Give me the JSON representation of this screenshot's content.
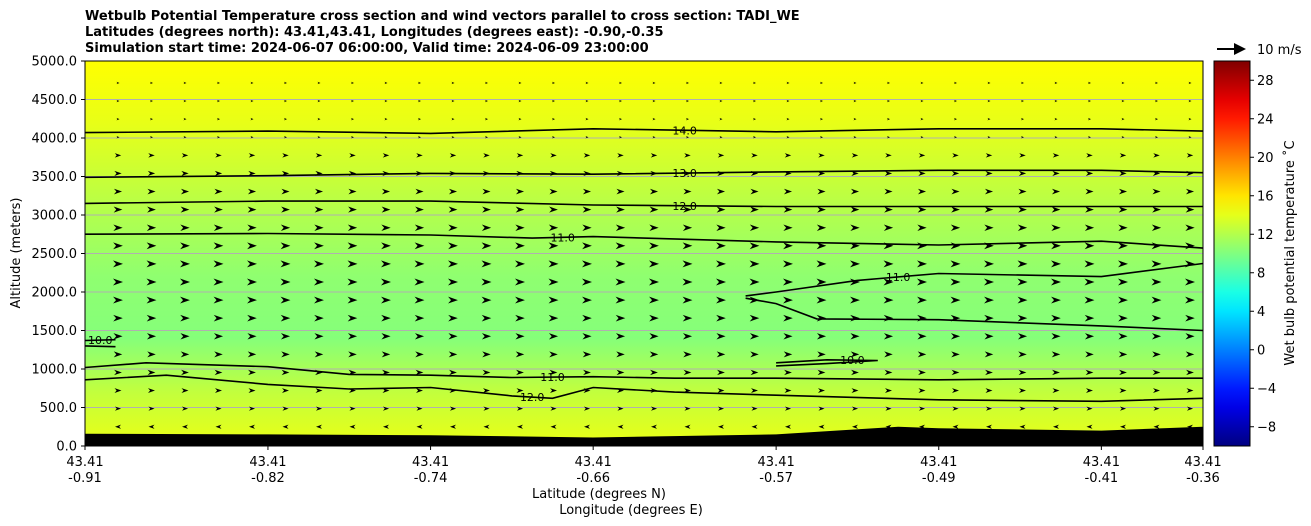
{
  "figure": {
    "title_lines": [
      "Wetbulb Potential Temperature cross section and wind vectors parallel to cross section: TADI_WE",
      "Latitudes (degrees north): 43.41,43.41, Longitudes (degrees east): -0.90,-0.35",
      "Simulation start time: 2024-06-07 06:00:00, Valid time: 2024-06-09 23:00:00"
    ]
  },
  "chart_data": {
    "type": "heatmap",
    "subtype": "cross-section with contours and wind vectors",
    "ylabel": "Altitude (meters)",
    "xlabel_lines": [
      "Latitude (degrees N)",
      "Longitude (degrees E)"
    ],
    "ylim": [
      0,
      5000
    ],
    "y_ticks": [
      "0.0",
      "500.0",
      "1000.0",
      "1500.0",
      "2000.0",
      "2500.0",
      "3000.0",
      "3500.0",
      "4000.0",
      "4500.0",
      "5000.0"
    ],
    "x_ticks": [
      {
        "lat": "43.41",
        "lon": "-0.91"
      },
      {
        "lat": "43.41",
        "lon": "-0.82"
      },
      {
        "lat": "43.41",
        "lon": "-0.74"
      },
      {
        "lat": "43.41",
        "lon": "-0.66"
      },
      {
        "lat": "43.41",
        "lon": "-0.57"
      },
      {
        "lat": "43.41",
        "lon": "-0.49"
      },
      {
        "lat": "43.41",
        "lon": "-0.41"
      },
      {
        "lat": "43.41",
        "lon": "-0.36"
      }
    ],
    "horizontal_grid": true,
    "colorbar": {
      "label": "Wet bulb potential temperature ˚C",
      "range": [
        -10,
        30
      ],
      "ticks": [
        "−8",
        "−4",
        "0",
        "4",
        "8",
        "12",
        "16",
        "20",
        "24",
        "28"
      ],
      "colormap": "jet"
    },
    "quiver_key": {
      "label": "10 m/s",
      "color": "#000000"
    },
    "background_field": [
      {
        "altitude": 0,
        "value": 14.2
      },
      {
        "altitude": 700,
        "value": 12.6
      },
      {
        "altitude": 1400,
        "value": 10.2
      },
      {
        "altitude": 2200,
        "value": 10.6
      },
      {
        "altitude": 2900,
        "value": 11.8
      },
      {
        "altitude": 3500,
        "value": 12.9
      },
      {
        "altitude": 4200,
        "value": 14.1
      },
      {
        "altitude": 5000,
        "value": 15.0
      }
    ],
    "contours": [
      {
        "label": "14.0",
        "points": [
          [
            -0.91,
            4070
          ],
          [
            -0.82,
            4090
          ],
          [
            -0.74,
            4060
          ],
          [
            -0.66,
            4120
          ],
          [
            -0.57,
            4080
          ],
          [
            -0.49,
            4120
          ],
          [
            -0.41,
            4120
          ],
          [
            -0.36,
            4090
          ]
        ]
      },
      {
        "label": "13.0",
        "points": [
          [
            -0.91,
            3490
          ],
          [
            -0.82,
            3510
          ],
          [
            -0.74,
            3540
          ],
          [
            -0.66,
            3530
          ],
          [
            -0.57,
            3560
          ],
          [
            -0.49,
            3580
          ],
          [
            -0.41,
            3580
          ],
          [
            -0.36,
            3550
          ]
        ]
      },
      {
        "label": "12.0",
        "points": [
          [
            -0.91,
            3150
          ],
          [
            -0.82,
            3180
          ],
          [
            -0.74,
            3180
          ],
          [
            -0.66,
            3130
          ],
          [
            -0.57,
            3110
          ],
          [
            -0.49,
            3110
          ],
          [
            -0.41,
            3110
          ],
          [
            -0.36,
            3110
          ]
        ]
      },
      {
        "label": "11.0",
        "points": [
          [
            -0.91,
            2750
          ],
          [
            -0.82,
            2760
          ],
          [
            -0.74,
            2740
          ],
          [
            -0.69,
            2700
          ],
          [
            -0.66,
            2720
          ],
          [
            -0.57,
            2650
          ],
          [
            -0.49,
            2610
          ],
          [
            -0.41,
            2660
          ],
          [
            -0.36,
            2570
          ]
        ]
      },
      {
        "label": "11.0",
        "points": [
          [
            -0.585,
            1950
          ],
          [
            -0.57,
            2000
          ],
          [
            -0.53,
            2150
          ],
          [
            -0.49,
            2240
          ],
          [
            -0.41,
            2200
          ],
          [
            -0.36,
            2370
          ]
        ]
      },
      {
        "label": "",
        "points": [
          [
            -0.585,
            1920
          ],
          [
            -0.57,
            1850
          ],
          [
            -0.55,
            1650
          ],
          [
            -0.49,
            1640
          ],
          [
            -0.41,
            1560
          ],
          [
            -0.36,
            1500
          ]
        ]
      },
      {
        "label": "10.0",
        "points": [
          [
            -0.91,
            1370
          ],
          [
            -0.895,
            1380
          ]
        ]
      },
      {
        "label": "",
        "points": [
          [
            -0.91,
            1300
          ],
          [
            -0.895,
            1290
          ]
        ]
      },
      {
        "label": "10.0",
        "points": [
          [
            -0.57,
            1080
          ],
          [
            -0.545,
            1120
          ],
          [
            -0.52,
            1110
          ],
          [
            -0.545,
            1070
          ],
          [
            -0.57,
            1040
          ]
        ]
      },
      {
        "label": "11.0",
        "points": [
          [
            -0.91,
            1020
          ],
          [
            -0.88,
            1080
          ],
          [
            -0.82,
            1030
          ],
          [
            -0.78,
            930
          ],
          [
            -0.74,
            920
          ],
          [
            -0.7,
            890
          ],
          [
            -0.66,
            900
          ],
          [
            -0.62,
            880
          ],
          [
            -0.57,
            880
          ],
          [
            -0.49,
            860
          ],
          [
            -0.41,
            880
          ],
          [
            -0.36,
            880
          ]
        ]
      },
      {
        "label": "12.0",
        "points": [
          [
            -0.91,
            860
          ],
          [
            -0.87,
            920
          ],
          [
            -0.82,
            800
          ],
          [
            -0.78,
            740
          ],
          [
            -0.74,
            760
          ],
          [
            -0.7,
            650
          ],
          [
            -0.68,
            620
          ],
          [
            -0.66,
            760
          ],
          [
            -0.62,
            700
          ],
          [
            -0.57,
            660
          ],
          [
            -0.49,
            600
          ],
          [
            -0.41,
            580
          ],
          [
            -0.36,
            620
          ]
        ]
      }
    ],
    "terrain": [
      [
        -0.91,
        160
      ],
      [
        -0.82,
        150
      ],
      [
        -0.74,
        140
      ],
      [
        -0.66,
        110
      ],
      [
        -0.57,
        150
      ],
      [
        -0.51,
        250
      ],
      [
        -0.49,
        230
      ],
      [
        -0.41,
        200
      ],
      [
        -0.36,
        250
      ]
    ]
  }
}
